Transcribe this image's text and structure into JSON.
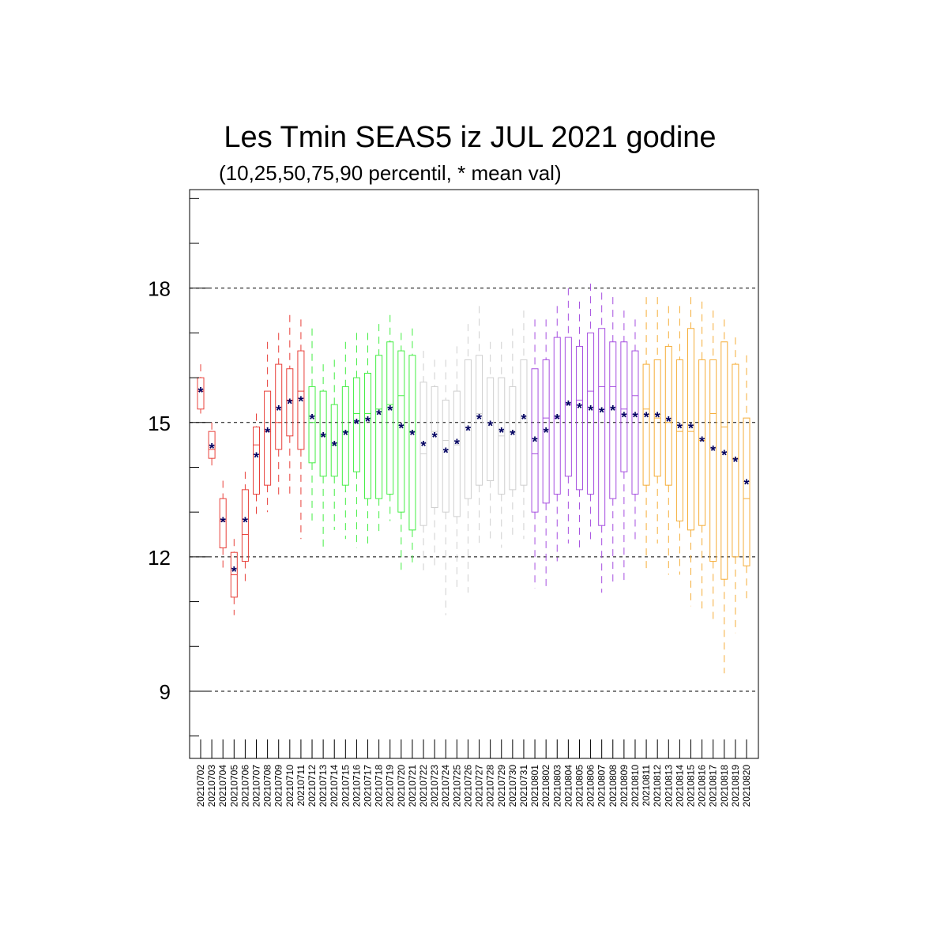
{
  "chart_data": {
    "type": "boxplot",
    "title": "Les Tmin SEAS5 iz JUL 2021 godine",
    "subtitle": "(10,25,50,75,90 percentil, * mean val)",
    "xlabel": "",
    "ylabel": "",
    "ylim": [
      7.5,
      20.2
    ],
    "yticks": [
      9,
      12,
      15,
      18
    ],
    "grid": "horizontal dashed at major ticks",
    "mean_marker": "*",
    "colors": {
      "red": "#e8403a",
      "green": "#44ee44",
      "gray": "#cfcfcf",
      "purple": "#a64fe0",
      "orange": "#f5ad38",
      "mean": "#000060"
    },
    "categories": [
      "20210702",
      "20210703",
      "20210704",
      "20210705",
      "20210706",
      "20210707",
      "20210708",
      "20210709",
      "20210710",
      "20210711",
      "20210712",
      "20210713",
      "20210714",
      "20210715",
      "20210716",
      "20210717",
      "20210718",
      "20210719",
      "20210720",
      "20210721",
      "20210722",
      "20210723",
      "20210724",
      "20210725",
      "20210726",
      "20210727",
      "20210728",
      "20210729",
      "20210730",
      "20210731",
      "20210801",
      "20210802",
      "20210803",
      "20210804",
      "20210805",
      "20210806",
      "20210807",
      "20210808",
      "20210809",
      "20210810",
      "20210811",
      "20210812",
      "20210813",
      "20210814",
      "20210815",
      "20210816",
      "20210817",
      "20210818",
      "20210819",
      "20210820"
    ],
    "boxes": [
      {
        "p10": 15.2,
        "p25": 15.3,
        "p50": 15.7,
        "p75": 16.0,
        "p90": 16.3,
        "mean": 15.7,
        "color": "red"
      },
      {
        "p10": 14.0,
        "p25": 14.2,
        "p50": 14.4,
        "p75": 14.8,
        "p90": 15.0,
        "mean": 14.45,
        "color": "red"
      },
      {
        "p10": 11.7,
        "p25": 12.2,
        "p50": 12.8,
        "p75": 13.3,
        "p90": 13.7,
        "mean": 12.8,
        "color": "red"
      },
      {
        "p10": 10.7,
        "p25": 11.1,
        "p50": 11.6,
        "p75": 12.1,
        "p90": 12.4,
        "mean": 11.7,
        "color": "red"
      },
      {
        "p10": 11.4,
        "p25": 11.9,
        "p50": 12.5,
        "p75": 13.5,
        "p90": 13.9,
        "mean": 12.8,
        "color": "red"
      },
      {
        "p10": 12.9,
        "p25": 13.4,
        "p50": 14.5,
        "p75": 14.9,
        "p90": 15.2,
        "mean": 14.25,
        "color": "red"
      },
      {
        "p10": 13.0,
        "p25": 13.6,
        "p50": 14.8,
        "p75": 15.7,
        "p90": 16.8,
        "mean": 14.8,
        "color": "red"
      },
      {
        "p10": 13.3,
        "p25": 14.4,
        "p50": 15.0,
        "p75": 16.3,
        "p90": 17.0,
        "mean": 15.3,
        "color": "red"
      },
      {
        "p10": 13.3,
        "p25": 14.7,
        "p50": 15.5,
        "p75": 16.2,
        "p90": 17.4,
        "mean": 15.45,
        "color": "red"
      },
      {
        "p10": 12.4,
        "p25": 14.4,
        "p50": 15.7,
        "p75": 16.6,
        "p90": 17.3,
        "mean": 15.5,
        "color": "red"
      },
      {
        "p10": 12.7,
        "p25": 14.1,
        "p50": 15.0,
        "p75": 15.8,
        "p90": 17.1,
        "mean": 15.1,
        "color": "green"
      },
      {
        "p10": 12.2,
        "p25": 13.8,
        "p50": 14.7,
        "p75": 15.7,
        "p90": 16.3,
        "mean": 14.7,
        "color": "green"
      },
      {
        "p10": 12.6,
        "p25": 13.8,
        "p50": 14.5,
        "p75": 15.4,
        "p90": 16.4,
        "mean": 14.5,
        "color": "green"
      },
      {
        "p10": 12.4,
        "p25": 13.6,
        "p50": 14.8,
        "p75": 15.8,
        "p90": 16.8,
        "mean": 14.75,
        "color": "green"
      },
      {
        "p10": 12.2,
        "p25": 13.9,
        "p50": 15.2,
        "p75": 16.0,
        "p90": 17.0,
        "mean": 15.0,
        "color": "green"
      },
      {
        "p10": 12.3,
        "p25": 13.3,
        "p50": 15.2,
        "p75": 16.1,
        "p90": 17.0,
        "mean": 15.05,
        "color": "green"
      },
      {
        "p10": 12.5,
        "p25": 13.3,
        "p50": 15.3,
        "p75": 16.5,
        "p90": 17.2,
        "mean": 15.2,
        "color": "green"
      },
      {
        "p10": 12.8,
        "p25": 13.4,
        "p50": 15.4,
        "p75": 16.8,
        "p90": 17.4,
        "mean": 15.3,
        "color": "green"
      },
      {
        "p10": 11.6,
        "p25": 13.0,
        "p50": 15.6,
        "p75": 16.6,
        "p90": 17.0,
        "mean": 14.9,
        "color": "green"
      },
      {
        "p10": 11.8,
        "p25": 12.6,
        "p50": 14.8,
        "p75": 16.5,
        "p90": 17.1,
        "mean": 14.75,
        "color": "green"
      },
      {
        "p10": 11.7,
        "p25": 12.7,
        "p50": 14.3,
        "p75": 15.9,
        "p90": 16.6,
        "mean": 14.5,
        "color": "gray"
      },
      {
        "p10": 11.8,
        "p25": 13.1,
        "p50": 14.8,
        "p75": 15.8,
        "p90": 16.4,
        "mean": 14.7,
        "color": "gray"
      },
      {
        "p10": 10.7,
        "p25": 13.0,
        "p50": 14.6,
        "p75": 15.5,
        "p90": 16.4,
        "mean": 14.35,
        "color": "gray"
      },
      {
        "p10": 11.3,
        "p25": 12.9,
        "p50": 14.5,
        "p75": 15.7,
        "p90": 16.7,
        "mean": 14.55,
        "color": "gray"
      },
      {
        "p10": 11.2,
        "p25": 13.3,
        "p50": 14.9,
        "p75": 16.4,
        "p90": 17.2,
        "mean": 14.85,
        "color": "gray"
      },
      {
        "p10": 12.2,
        "p25": 13.6,
        "p50": 15.2,
        "p75": 16.5,
        "p90": 17.6,
        "mean": 15.1,
        "color": "gray"
      },
      {
        "p10": 12.4,
        "p25": 13.7,
        "p50": 15.0,
        "p75": 16.0,
        "p90": 16.8,
        "mean": 14.95,
        "color": "gray"
      },
      {
        "p10": 12.2,
        "p25": 13.4,
        "p50": 14.7,
        "p75": 16.0,
        "p90": 16.8,
        "mean": 14.8,
        "color": "gray"
      },
      {
        "p10": 12.4,
        "p25": 13.5,
        "p50": 14.8,
        "p75": 15.8,
        "p90": 17.1,
        "mean": 14.75,
        "color": "gray"
      },
      {
        "p10": 12.4,
        "p25": 13.6,
        "p50": 15.1,
        "p75": 16.4,
        "p90": 17.5,
        "mean": 15.1,
        "color": "gray"
      },
      {
        "p10": 11.3,
        "p25": 13.0,
        "p50": 14.3,
        "p75": 16.2,
        "p90": 17.3,
        "mean": 14.6,
        "color": "purple"
      },
      {
        "p10": 11.3,
        "p25": 13.2,
        "p50": 15.1,
        "p75": 16.4,
        "p90": 17.3,
        "mean": 14.8,
        "color": "purple"
      },
      {
        "p10": 11.9,
        "p25": 13.4,
        "p50": 15.1,
        "p75": 16.9,
        "p90": 17.6,
        "mean": 15.1,
        "color": "purple"
      },
      {
        "p10": 12.3,
        "p25": 13.8,
        "p50": 15.4,
        "p75": 16.9,
        "p90": 18.0,
        "mean": 15.4,
        "color": "purple"
      },
      {
        "p10": 12.1,
        "p25": 13.5,
        "p50": 15.5,
        "p75": 16.7,
        "p90": 17.7,
        "mean": 15.35,
        "color": "purple"
      },
      {
        "p10": 12.3,
        "p25": 13.4,
        "p50": 15.7,
        "p75": 17.0,
        "p90": 18.1,
        "mean": 15.3,
        "color": "purple"
      },
      {
        "p10": 11.2,
        "p25": 12.7,
        "p50": 15.8,
        "p75": 17.1,
        "p90": 17.9,
        "mean": 15.25,
        "color": "purple"
      },
      {
        "p10": 11.4,
        "p25": 13.3,
        "p50": 15.8,
        "p75": 16.8,
        "p90": 17.8,
        "mean": 15.3,
        "color": "purple"
      },
      {
        "p10": 11.4,
        "p25": 13.9,
        "p50": 15.3,
        "p75": 16.8,
        "p90": 17.5,
        "mean": 15.15,
        "color": "purple"
      },
      {
        "p10": 12.3,
        "p25": 13.4,
        "p50": 15.6,
        "p75": 16.6,
        "p90": 17.3,
        "mean": 15.15,
        "color": "purple"
      },
      {
        "p10": 11.7,
        "p25": 13.6,
        "p50": 15.3,
        "p75": 16.3,
        "p90": 17.8,
        "mean": 15.15,
        "color": "orange"
      },
      {
        "p10": 12.3,
        "p25": 13.8,
        "p50": 15.1,
        "p75": 16.4,
        "p90": 17.8,
        "mean": 15.15,
        "color": "orange"
      },
      {
        "p10": 11.6,
        "p25": 13.6,
        "p50": 15.0,
        "p75": 16.7,
        "p90": 17.6,
        "mean": 15.05,
        "color": "orange"
      },
      {
        "p10": 11.6,
        "p25": 12.8,
        "p50": 14.8,
        "p75": 16.4,
        "p90": 17.6,
        "mean": 14.9,
        "color": "orange"
      },
      {
        "p10": 10.9,
        "p25": 12.6,
        "p50": 14.8,
        "p75": 17.1,
        "p90": 17.8,
        "mean": 14.9,
        "color": "orange"
      },
      {
        "p10": 10.8,
        "p25": 12.7,
        "p50": 14.6,
        "p75": 16.4,
        "p90": 17.7,
        "mean": 14.6,
        "color": "orange"
      },
      {
        "p10": 10.5,
        "p25": 11.9,
        "p50": 15.2,
        "p75": 16.4,
        "p90": 17.5,
        "mean": 14.4,
        "color": "orange"
      },
      {
        "p10": 9.4,
        "p25": 11.5,
        "p50": 14.9,
        "p75": 16.8,
        "p90": 17.3,
        "mean": 14.3,
        "color": "orange"
      },
      {
        "p10": 10.3,
        "p25": 12.0,
        "p50": 14.2,
        "p75": 16.3,
        "p90": 16.9,
        "mean": 14.15,
        "color": "orange"
      },
      {
        "p10": 11.0,
        "p25": 11.8,
        "p50": 13.3,
        "p75": 15.1,
        "p90": 16.5,
        "mean": 13.65,
        "color": "orange"
      }
    ]
  }
}
